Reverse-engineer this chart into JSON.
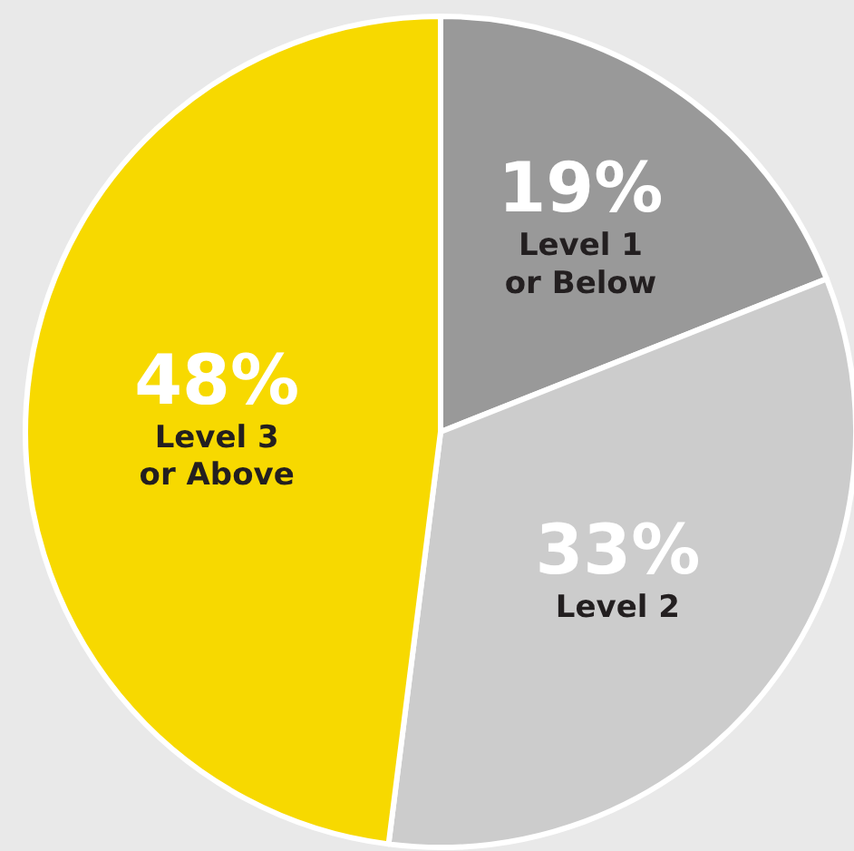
{
  "chart_data": {
    "type": "pie",
    "categories": [
      "Level 1\nor Below",
      "Level 2",
      "Level 3\nor Above"
    ],
    "values": [
      19,
      33,
      48
    ],
    "colors": [
      "#999999",
      "#cccccc",
      "#f7d900"
    ],
    "value_labels": [
      "19%",
      "33%",
      "48%"
    ]
  }
}
